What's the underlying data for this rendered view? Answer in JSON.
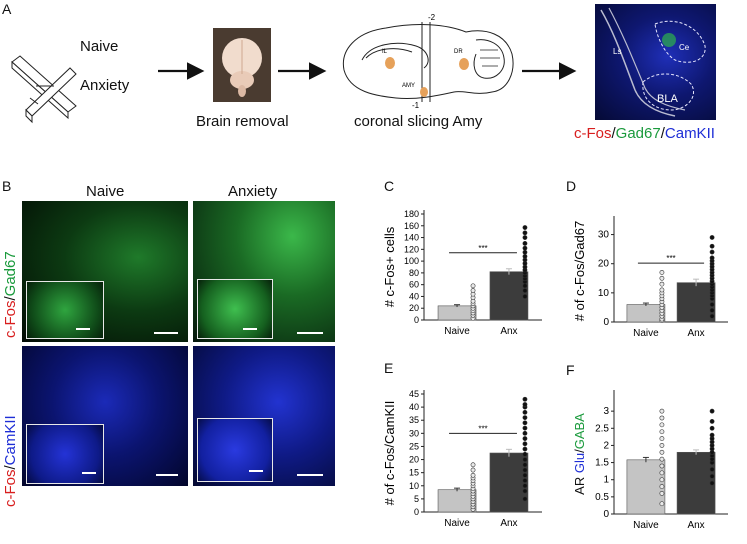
{
  "panels": {
    "a": "A",
    "b": "B",
    "c": "C",
    "d": "D",
    "e": "E",
    "f": "F"
  },
  "workflow": {
    "group_naive": "Naive",
    "group_anxiety": "Anxiety",
    "brain_removal": "Brain removal",
    "coronal_slicing": "coronal slicing Amy",
    "sagittal_labels": {
      "il": "IL",
      "dr": "DR",
      "amy": "AMY",
      "bregma_top": "-2",
      "bregma_bottom": "-1"
    },
    "region_labels": {
      "ls": "Ls",
      "ce": "Ce",
      "bla": "BLA"
    },
    "stain": {
      "part1": "c-Fos",
      "sep1": "/",
      "part2": "Gad67",
      "sep2": "/",
      "part3": "CamKII"
    }
  },
  "micrographs": {
    "col_naive": "Naive",
    "col_anxiety": "Anxiety",
    "row1_label": {
      "part1": "c-Fos",
      "sep": "/",
      "part2": "Gad67"
    },
    "row2_label": {
      "part1": "c-Fos",
      "sep": "/",
      "part2": "CamKII"
    }
  },
  "colors": {
    "red": "#d81e1e",
    "green": "#1a9a3c",
    "blue": "#1e2ed6",
    "naive_bar": "#c4c4c4",
    "anx_bar": "#3c3c3c"
  },
  "chart_data": [
    {
      "panel": "C",
      "type": "bar",
      "categories": [
        "Naive",
        "Anx"
      ],
      "values": [
        24,
        82
      ],
      "errors": [
        2,
        5
      ],
      "ylabel": "# c-Fos+ cells",
      "ylim": [
        0,
        180
      ],
      "yticks": [
        0,
        20,
        40,
        60,
        80,
        100,
        120,
        140,
        160,
        180
      ],
      "significance": "***",
      "points": [
        [
          3,
          8,
          12,
          16,
          20,
          24,
          28,
          32,
          38,
          44,
          50,
          58
        ],
        [
          40,
          50,
          58,
          65,
          70,
          75,
          80,
          85,
          90,
          96,
          102,
          108,
          115,
          122,
          130,
          140,
          148,
          157
        ]
      ]
    },
    {
      "panel": "D",
      "type": "bar",
      "categories": [
        "Naive",
        "Anx"
      ],
      "values": [
        6,
        13.5
      ],
      "errors": [
        0.5,
        1.2
      ],
      "ylabel": "# of c-Fos/Gad67",
      "ylim": [
        0,
        35
      ],
      "yticks": [
        0,
        10,
        20,
        30
      ],
      "significance": "***",
      "points": [
        [
          0.5,
          1,
          2,
          3,
          4,
          5,
          6,
          7,
          8,
          9,
          10,
          11,
          13,
          15,
          17
        ],
        [
          2,
          4,
          6,
          8,
          9,
          10,
          11,
          12,
          13,
          14,
          15,
          16,
          17,
          18,
          19,
          20,
          21,
          22,
          24,
          26,
          29
        ]
      ]
    },
    {
      "panel": "E",
      "type": "bar",
      "categories": [
        "Naive",
        "Anx"
      ],
      "values": [
        8.5,
        22.5
      ],
      "errors": [
        0.6,
        1.4
      ],
      "ylabel": "# of c-Fos/CamKII",
      "ylim": [
        0,
        45
      ],
      "yticks": [
        0,
        5,
        10,
        15,
        20,
        25,
        30,
        35,
        40,
        45
      ],
      "significance": "***",
      "points": [
        [
          1,
          2,
          3,
          4,
          5,
          6,
          7,
          8,
          9,
          10,
          11,
          12,
          13,
          14,
          16,
          18
        ],
        [
          5,
          8,
          10,
          12,
          14,
          16,
          18,
          20,
          22,
          24,
          26,
          28,
          30,
          32,
          34,
          36,
          38,
          40,
          41,
          43
        ]
      ]
    },
    {
      "panel": "F",
      "type": "bar",
      "categories": [
        "Naive",
        "Anx"
      ],
      "values": [
        1.58,
        1.8
      ],
      "errors": [
        0.07,
        0.07
      ],
      "ylabel_parts": [
        "AR ",
        "Glu",
        "/",
        "GABA"
      ],
      "ylim": [
        0,
        3.5
      ],
      "yticks": [
        0,
        0.5,
        1,
        1.5,
        2,
        2.5,
        3
      ],
      "points": [
        [
          0.3,
          0.6,
          0.8,
          1.0,
          1.2,
          1.4,
          1.6,
          1.8,
          2.0,
          2.2,
          2.4,
          2.6,
          2.8,
          3.0
        ],
        [
          0.9,
          1.1,
          1.3,
          1.5,
          1.6,
          1.7,
          1.8,
          1.9,
          2.0,
          2.1,
          2.2,
          2.3,
          2.5,
          2.7,
          3.0
        ]
      ]
    }
  ]
}
